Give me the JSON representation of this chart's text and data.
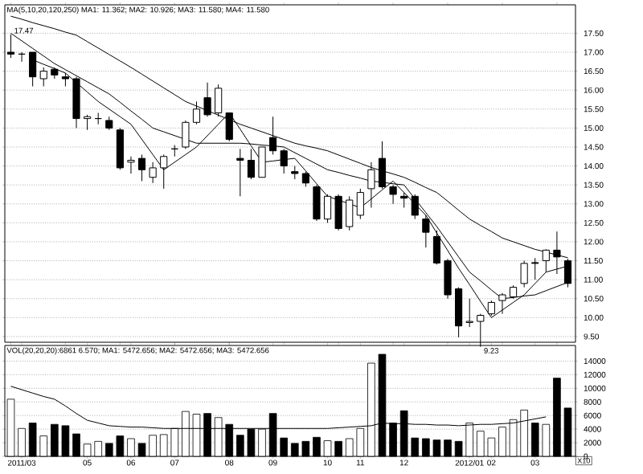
{
  "chart_data": [
    {
      "type": "candlestick",
      "title": "MA(5,10,20,120,250) MA1: 11.362; MA2: 10.926; MA3: 11.580; MA4: 11.580",
      "categories": [
        null,
        null,
        null,
        null,
        null,
        null,
        null,
        null,
        null,
        null,
        null,
        null,
        null,
        null,
        null,
        null,
        null,
        null,
        null,
        null,
        null,
        null,
        null,
        null,
        null,
        null,
        null,
        null,
        null,
        null,
        null,
        null,
        null,
        null,
        null,
        null,
        null,
        null,
        null,
        null,
        null,
        null,
        null,
        null,
        null,
        null,
        null,
        null,
        null,
        null,
        null,
        null
      ],
      "color": "#000000",
      "ohlc": [
        [
          17.0,
          17.47,
          16.85,
          16.95
        ],
        [
          16.95,
          17.0,
          16.75,
          16.95
        ],
        [
          17.0,
          17.0,
          16.1,
          16.35
        ],
        [
          16.3,
          16.6,
          16.1,
          16.5
        ],
        [
          16.55,
          16.6,
          16.3,
          16.4
        ],
        [
          16.35,
          16.45,
          16.1,
          16.3
        ],
        [
          16.3,
          16.35,
          15.0,
          15.25
        ],
        [
          15.25,
          15.35,
          14.95,
          15.3
        ],
        [
          15.25,
          15.4,
          15.1,
          15.25
        ],
        [
          15.2,
          15.3,
          14.95,
          15.0
        ],
        [
          14.95,
          15.0,
          13.9,
          13.95
        ],
        [
          14.1,
          14.25,
          13.8,
          14.15
        ],
        [
          14.2,
          14.3,
          13.6,
          13.9
        ],
        [
          13.7,
          14.1,
          13.55,
          13.95
        ],
        [
          13.95,
          14.3,
          13.4,
          14.25
        ],
        [
          14.45,
          14.55,
          14.25,
          14.45
        ],
        [
          14.5,
          15.2,
          14.45,
          15.15
        ],
        [
          15.15,
          15.7,
          15.1,
          15.5
        ],
        [
          15.8,
          16.2,
          15.3,
          15.35
        ],
        [
          15.4,
          16.15,
          15.3,
          16.05
        ],
        [
          15.4,
          15.4,
          14.65,
          14.7
        ],
        [
          14.2,
          14.45,
          13.2,
          14.15
        ],
        [
          14.15,
          14.45,
          13.65,
          13.7
        ],
        [
          13.7,
          14.5,
          13.7,
          14.5
        ],
        [
          14.75,
          15.3,
          14.3,
          14.4
        ],
        [
          14.4,
          14.45,
          13.8,
          14.0
        ],
        [
          13.85,
          14.0,
          13.65,
          13.8
        ],
        [
          13.8,
          13.85,
          13.45,
          13.55
        ],
        [
          13.45,
          13.5,
          12.55,
          12.6
        ],
        [
          12.6,
          13.25,
          12.5,
          13.2
        ],
        [
          13.2,
          13.25,
          12.3,
          12.35
        ],
        [
          12.4,
          13.2,
          12.3,
          13.1
        ],
        [
          12.7,
          13.4,
          12.6,
          13.3
        ],
        [
          13.4,
          14.1,
          12.9,
          13.9
        ],
        [
          14.2,
          14.65,
          13.4,
          13.45
        ],
        [
          13.45,
          13.5,
          13.0,
          13.25
        ],
        [
          13.2,
          13.3,
          12.9,
          13.15
        ],
        [
          13.2,
          13.25,
          12.6,
          12.7
        ],
        [
          12.6,
          12.7,
          11.85,
          12.25
        ],
        [
          12.14,
          12.3,
          11.4,
          11.44
        ],
        [
          11.5,
          11.55,
          10.5,
          10.6
        ],
        [
          10.76,
          10.8,
          9.48,
          9.78
        ],
        [
          9.87,
          10.5,
          9.75,
          9.9
        ],
        [
          9.9,
          10.1,
          9.23,
          10.06
        ],
        [
          10.1,
          10.45,
          10.05,
          10.4
        ],
        [
          10.45,
          10.65,
          10.1,
          10.6
        ],
        [
          10.55,
          10.85,
          10.5,
          10.8
        ],
        [
          10.9,
          11.5,
          10.8,
          11.43
        ],
        [
          11.45,
          11.57,
          11.0,
          11.43
        ],
        [
          11.5,
          11.8,
          11.2,
          11.78
        ],
        [
          11.78,
          12.27,
          11.15,
          11.6
        ],
        [
          11.5,
          11.55,
          10.8,
          10.9
        ]
      ],
      "series": [
        {
          "type": "line",
          "color": "#000000",
          "values": [
            17.95,
            17.87,
            17.78,
            17.7,
            17.62,
            17.53,
            17.45,
            17.28,
            17.11,
            16.94,
            16.77,
            16.6,
            16.42,
            16.24,
            16.06,
            15.88,
            15.7,
            15.58,
            15.46,
            15.34,
            15.22,
            15.1,
            15.0,
            14.9,
            14.8,
            14.7,
            14.6,
            14.53,
            14.47,
            14.4,
            14.29,
            14.18,
            14.07,
            13.96,
            13.87,
            13.79,
            13.7,
            13.57,
            13.43,
            13.3,
            13.07,
            12.83,
            12.6,
            12.43,
            12.27,
            12.1,
            12.0,
            11.9,
            11.8,
            11.73,
            11.65,
            11.58
          ]
        },
        {
          "type": "line",
          "color": "#000000",
          "values": [
            17.5,
            17.3,
            17.1,
            16.9,
            16.7,
            16.54,
            16.38,
            16.22,
            16.06,
            15.9,
            15.68,
            15.45,
            15.23,
            15.0,
            14.9,
            14.8,
            14.7,
            14.6,
            14.6,
            14.6,
            14.6,
            14.6,
            14.58,
            14.55,
            14.53,
            14.5,
            14.35,
            14.2,
            14.05,
            13.9,
            13.83,
            13.75,
            13.68,
            13.6,
            13.57,
            13.53,
            13.5,
            13.13,
            12.77,
            12.4,
            12.0,
            11.6,
            11.2,
            10.97,
            10.73,
            10.5,
            10.53,
            10.57,
            10.6,
            10.71,
            10.82,
            10.93
          ]
        },
        {
          "type": "line",
          "color": "#000000",
          "values": [
            null,
            null,
            16.8,
            16.68,
            16.57,
            16.45,
            16.2,
            15.95,
            15.7,
            15.5,
            15.3,
            15.1,
            14.7,
            14.3,
            13.9,
            14.1,
            14.3,
            14.5,
            14.8,
            15.1,
            15.4,
            14.97,
            14.53,
            14.1,
            14.13,
            14.17,
            14.2,
            13.87,
            13.53,
            13.2,
            13.1,
            13.0,
            12.9,
            13.13,
            13.37,
            13.6,
            13.3,
            13.0,
            12.7,
            12.23,
            11.77,
            11.3,
            10.87,
            10.43,
            10.0,
            10.2,
            10.4,
            10.6,
            10.9,
            11.2,
            11.28,
            11.36
          ]
        }
      ],
      "ylim": [
        9.35,
        18.25
      ],
      "yticks": [
        {
          "value": 9.5,
          "label": "9.50"
        },
        {
          "value": 10,
          "label": "10.00"
        },
        {
          "value": 10.5,
          "label": "10.50"
        },
        {
          "value": 11,
          "label": "11.00"
        },
        {
          "value": 11.5,
          "label": "11.50"
        },
        {
          "value": 12,
          "label": "12.00"
        },
        {
          "value": 12.5,
          "label": "12.50"
        },
        {
          "value": 13,
          "label": "13.00"
        },
        {
          "value": 13.5,
          "label": "13.50"
        },
        {
          "value": 14,
          "label": "14.00"
        },
        {
          "value": 14.5,
          "label": "14.50"
        },
        {
          "value": 15,
          "label": "15.00"
        },
        {
          "value": 15.5,
          "label": "15.50"
        },
        {
          "value": 16,
          "label": "16.00"
        },
        {
          "value": 16.5,
          "label": "16.50"
        },
        {
          "value": 17,
          "label": "17.00"
        },
        {
          "value": 17.5,
          "label": "17.50"
        }
      ],
      "grid": "y",
      "tick_labels": "y",
      "annotations": [
        {
          "text": "17.47",
          "y": 17.47
        },
        "9.23"
      ]
    },
    {
      "type": "bar",
      "title": "VOL(20,20,20):6861 6.570; MA1: 5472.656; MA2: 5472.656; MA3: 5472.656",
      "ylabel": "X10",
      "categories": [
        null,
        "2011/03",
        null,
        null,
        null,
        null,
        null,
        "05",
        null,
        null,
        null,
        "06",
        null,
        null,
        null,
        "07",
        null,
        null,
        null,
        null,
        "08",
        null,
        null,
        null,
        "09",
        null,
        null,
        null,
        null,
        "10",
        null,
        null,
        "11",
        null,
        null,
        null,
        "12",
        null,
        null,
        null,
        null,
        null,
        "2012/01",
        null,
        "02",
        null,
        null,
        null,
        "03",
        null,
        null,
        null
      ],
      "series": [
        {
          "type": "bar",
          "values": [
            8400,
            4100,
            4900,
            3000,
            4700,
            4500,
            3300,
            1800,
            2200,
            1900,
            3000,
            2600,
            1900,
            3100,
            3200,
            4100,
            6600,
            6200,
            6300,
            5700,
            4700,
            3100,
            4000,
            4000,
            6300,
            2700,
            1900,
            2200,
            2800,
            2300,
            2200,
            2600,
            4100,
            13700,
            15000,
            4900,
            6700,
            2700,
            2600,
            2400,
            2400,
            2200,
            4900,
            3700,
            2700,
            4300,
            5400,
            6800,
            4900,
            4700,
            11500,
            7100
          ],
          "colors": [
            "#ffffff",
            "#ffffff",
            "#000000",
            "#ffffff",
            "#000000",
            "#000000",
            "#000000",
            "#ffffff",
            "#ffffff",
            "#000000",
            "#000000",
            "#ffffff",
            "#000000",
            "#ffffff",
            "#ffffff",
            "#ffffff",
            "#ffffff",
            "#ffffff",
            "#000000",
            "#ffffff",
            "#000000",
            "#000000",
            "#000000",
            "#ffffff",
            "#000000",
            "#000000",
            "#000000",
            "#000000",
            "#000000",
            "#ffffff",
            "#000000",
            "#ffffff",
            "#ffffff",
            "#ffffff",
            "#000000",
            "#000000",
            "#000000",
            "#000000",
            "#000000",
            "#000000",
            "#000000",
            "#000000",
            "#ffffff",
            "#ffffff",
            "#ffffff",
            "#ffffff",
            "#ffffff",
            "#ffffff",
            "#000000",
            "#ffffff",
            "#000000",
            "#000000"
          ]
        },
        {
          "type": "line",
          "color": "#000000",
          "values": [
            10300,
            9800,
            9300,
            8800,
            8400,
            7400,
            6300,
            5300,
            4900,
            4500,
            4400,
            4300,
            4300,
            4200,
            4100,
            4100,
            4100,
            4100,
            4100,
            4100,
            4100,
            4100,
            4100,
            4100,
            4100,
            4100,
            4100,
            4100,
            4100,
            4100,
            4200,
            4300,
            4400,
            4500,
            4900,
            4800,
            4800,
            4700,
            4700,
            4600,
            4600,
            4500,
            4600,
            4700,
            4700,
            4800,
            4900,
            5200,
            5500,
            5800,
            null,
            null
          ]
        }
      ],
      "ylim": [
        0,
        16300
      ],
      "yticks": [
        0,
        2000,
        4000,
        6000,
        8000,
        10000,
        12000,
        14000
      ],
      "grid": "y"
    }
  ]
}
